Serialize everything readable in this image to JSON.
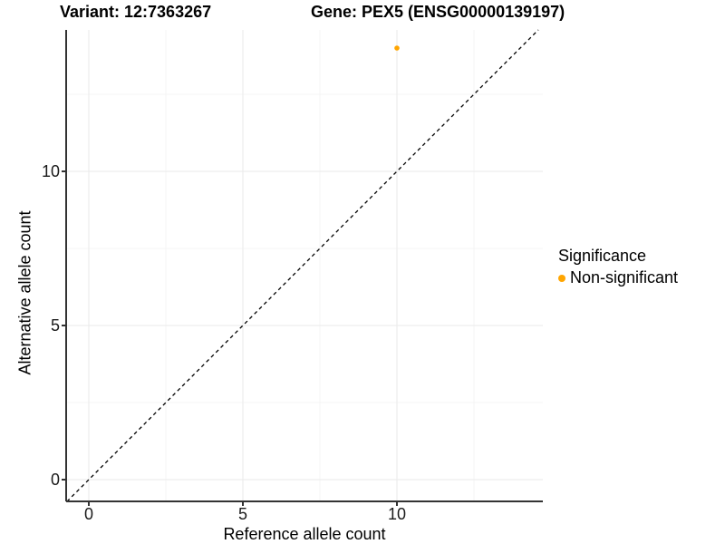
{
  "titles": {
    "left": "Variant: 12:7363267",
    "right": "Gene: PEX5 (ENSG00000139197)"
  },
  "chart_data": {
    "type": "scatter",
    "title": "Variant: 12:7363267  |  Gene: PEX5 (ENSG00000139197)",
    "xlabel": "Reference allele count",
    "ylabel": "Alternative allele count",
    "xlim": [
      -0.71,
      14.74
    ],
    "ylim": [
      -0.71,
      14.59
    ],
    "x_major_ticks": [
      0,
      5,
      10
    ],
    "y_major_ticks": [
      0,
      5,
      10
    ],
    "x_minor_ticks": [
      2.5,
      7.5,
      12.5
    ],
    "y_minor_ticks": [
      2.5,
      7.5,
      12.5
    ],
    "grid": "major+minor",
    "points": [
      {
        "x": 10,
        "y": 14,
        "series": "Non-significant",
        "color": "#FFA500"
      }
    ],
    "abline": {
      "slope": 1,
      "intercept": 0,
      "style": "dashed",
      "color": "#000000"
    },
    "legend": {
      "title": "Significance",
      "position": "right",
      "entries": [
        {
          "label": "Non-significant",
          "color": "#FFA500"
        }
      ]
    },
    "colors": {
      "point": "#FFA500",
      "grid_major": "#EAEAEA",
      "grid_minor": "#F4F4F4",
      "axis_line": "#333333",
      "tick_text": "#1a1a1a"
    }
  }
}
